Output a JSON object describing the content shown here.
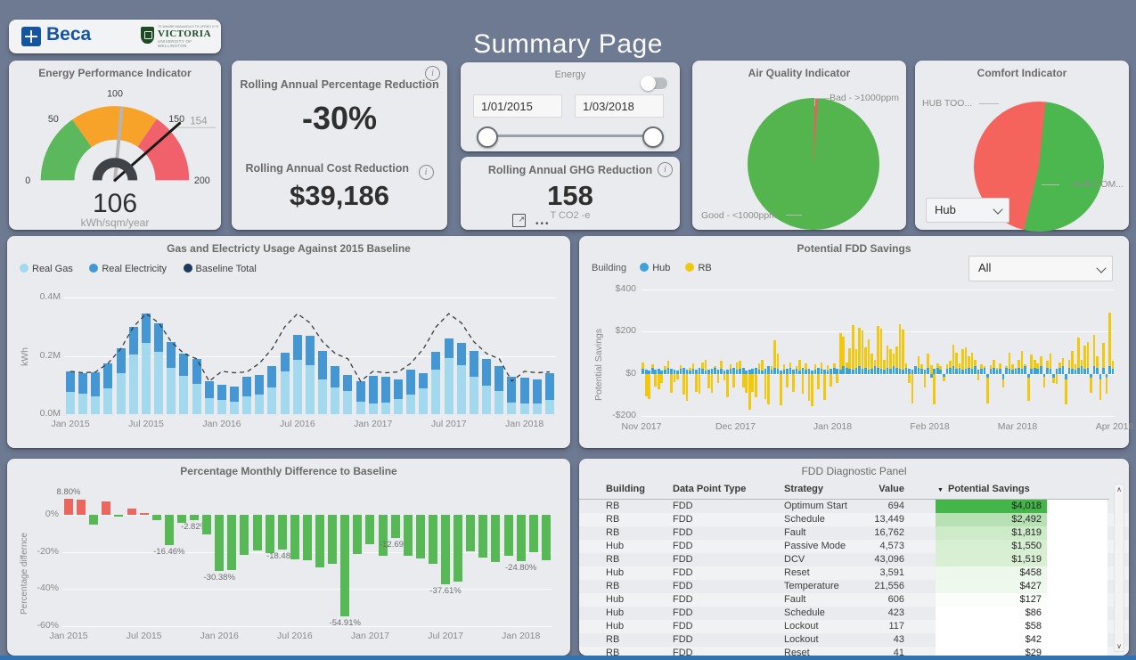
{
  "page": {
    "title": "Summary Page"
  },
  "colors": {
    "background": "#6e7a92",
    "card": "#e9ebee",
    "bottom_strip": "#2e73b4",
    "beca_blue": "#15549f",
    "victoria_green": "#1d4a24",
    "positive_red": "#ec6660",
    "negative_green": "#57b956"
  },
  "icons": {
    "info": "i",
    "ellipsis": "•••",
    "popout": "↗",
    "sort_caret": "▼",
    "scroll_up": "∧",
    "scroll_down": "∨"
  },
  "logos": {
    "beca_text": "Beca",
    "victoria_maori": "TE WHARE WANANGA O TE UPOKO O TE IKA A MAUI",
    "victoria_text": "VICTORIA",
    "victoria_sub": "UNIVERSITY OF WELLINGTON"
  },
  "rolling": {
    "pct_title": "Rolling Annual Percentage Reduction",
    "pct_value": "-30%",
    "cost_title": "Rolling Annual Cost Reduction",
    "cost_value": "$39,186"
  },
  "slicer": {
    "title": "Energy",
    "start_date": "1/01/2015",
    "end_date": "1/03/2018"
  },
  "ghg": {
    "title": "Rolling Annual GHG Reduction",
    "value": "158",
    "unit": "T CO2 -e"
  },
  "chart_data": [
    {
      "id": "epi_gauge",
      "type": "gauge",
      "title": "Energy Performance Indicator",
      "min": 0,
      "max": 200,
      "value": 106,
      "target": 154,
      "value_label": "106",
      "target_label": "154",
      "unit": "kWh/sqm/year",
      "ticks": [
        0,
        50,
        100,
        150,
        200
      ],
      "segments": [
        {
          "from": 0,
          "to": 61,
          "color": "#5cb85c"
        },
        {
          "from": 61,
          "to": 138,
          "color": "#f7a228"
        },
        {
          "from": 138,
          "to": 200,
          "color": "#f0616b"
        }
      ]
    },
    {
      "id": "air_quality",
      "type": "pie",
      "title": "Air Quality Indicator",
      "slices": [
        {
          "label": "Bad - >1000ppm",
          "pct": 0.8,
          "color": "#ec5f60"
        },
        {
          "label": "Good - <1000ppm",
          "pct": 99.2,
          "color": "#54b44e"
        }
      ]
    },
    {
      "id": "comfort",
      "type": "pie",
      "title": "Comfort Indicator",
      "filter_value": "Hub",
      "slices": [
        {
          "label": "HUB COM...",
          "pct": 52,
          "color": "#4cb64f"
        },
        {
          "label": "HUB TOO...",
          "pct": 48,
          "color": "#f4645c"
        }
      ]
    },
    {
      "id": "usage",
      "type": "bar",
      "title": "Gas and Electricty Usage Against 2015 Baseline",
      "ylabel": "kWh",
      "ylim": [
        0,
        0.44
      ],
      "yticks": [
        "0.0M",
        "0.2M",
        "0.4M"
      ],
      "ytick_values": [
        0,
        0.2,
        0.4
      ],
      "xticks": [
        "Jan 2015",
        "Jul 2015",
        "Jan 2016",
        "Jul 2016",
        "Jan 2017",
        "Jul 2017",
        "Jan 2018"
      ],
      "xtick_index": [
        0,
        6,
        12,
        18,
        24,
        30,
        36
      ],
      "categories": [
        "Jan 2015",
        "Feb 2015",
        "Mar 2015",
        "Apr 2015",
        "May 2015",
        "Jun 2015",
        "Jul 2015",
        "Aug 2015",
        "Sep 2015",
        "Oct 2015",
        "Nov 2015",
        "Dec 2015",
        "Jan 2016",
        "Feb 2016",
        "Mar 2016",
        "Apr 2016",
        "May 2016",
        "Jun 2016",
        "Jul 2016",
        "Aug 2016",
        "Sep 2016",
        "Oct 2016",
        "Nov 2016",
        "Dec 2016",
        "Jan 2017",
        "Feb 2017",
        "Mar 2017",
        "Apr 2017",
        "May 2017",
        "Jun 2017",
        "Jul 2017",
        "Aug 2017",
        "Sep 2017",
        "Oct 2017",
        "Nov 2017",
        "Dec 2017",
        "Jan 2018",
        "Feb 2018",
        "Mar 2018"
      ],
      "series": [
        {
          "name": "Real Gas",
          "color": "#a3d9ee",
          "values": [
            0.075,
            0.07,
            0.06,
            0.09,
            0.14,
            0.205,
            0.245,
            0.215,
            0.16,
            0.13,
            0.105,
            0.055,
            0.048,
            0.044,
            0.062,
            0.068,
            0.092,
            0.148,
            0.185,
            0.168,
            0.118,
            0.092,
            0.078,
            0.042,
            0.038,
            0.04,
            0.052,
            0.066,
            0.088,
            0.152,
            0.192,
            0.168,
            0.128,
            0.098,
            0.078,
            0.04,
            0.036,
            0.038,
            0.048
          ]
        },
        {
          "name": "Real Electricity",
          "color": "#4497d3",
          "values": [
            0.072,
            0.07,
            0.085,
            0.085,
            0.085,
            0.095,
            0.1,
            0.098,
            0.088,
            0.078,
            0.085,
            0.058,
            0.052,
            0.05,
            0.066,
            0.066,
            0.074,
            0.062,
            0.088,
            0.102,
            0.098,
            0.072,
            0.058,
            0.072,
            0.092,
            0.088,
            0.068,
            0.088,
            0.052,
            0.062,
            0.068,
            0.078,
            0.088,
            0.092,
            0.088,
            0.088,
            0.09,
            0.082,
            0.092
          ]
        },
        {
          "name": "Baseline Total",
          "color": "#1b3a5c",
          "style": "dashed-line",
          "values": [
            0.147,
            0.142,
            0.145,
            0.175,
            0.225,
            0.3,
            0.345,
            0.313,
            0.248,
            0.208,
            0.19,
            0.113,
            0.147,
            0.142,
            0.145,
            0.175,
            0.225,
            0.3,
            0.345,
            0.313,
            0.248,
            0.208,
            0.19,
            0.113,
            0.147,
            0.142,
            0.145,
            0.175,
            0.225,
            0.3,
            0.345,
            0.313,
            0.248,
            0.208,
            0.19,
            0.113,
            0.147,
            0.142,
            0.145
          ]
        }
      ]
    },
    {
      "id": "fdd_savings",
      "type": "bar",
      "title": "Potential FDD Savings",
      "legend_title": "Building",
      "filter_value": "All",
      "ylabel": "Potential Savings",
      "ylim": [
        -200,
        400
      ],
      "yticks": [
        "$400",
        "$200",
        "$0",
        "-$200"
      ],
      "ytick_values": [
        400,
        200,
        0,
        -200
      ],
      "xticks": [
        "Nov 2017",
        "Dec 2017",
        "Jan 2018",
        "Feb 2018",
        "Mar 2018",
        "Apr 2018"
      ],
      "xtick_index": [
        0,
        30,
        61,
        92,
        120,
        151
      ],
      "series": [
        {
          "name": "Hub",
          "color": "#3aa3dc",
          "values": [
            25,
            20,
            15,
            30,
            20,
            25,
            15,
            20,
            30,
            25,
            20,
            15,
            25,
            30,
            20,
            15,
            25,
            20,
            30,
            25,
            15,
            20,
            25,
            30,
            20,
            25,
            15,
            20,
            25,
            30,
            20,
            25,
            30,
            15,
            20,
            25,
            30,
            20,
            15,
            25,
            35,
            20,
            30,
            25,
            15,
            20,
            25,
            30,
            20,
            25,
            15,
            30,
            20,
            25,
            15,
            20,
            30,
            25,
            20,
            15,
            25,
            30,
            25,
            20,
            35,
            30,
            25,
            20,
            30,
            35,
            25,
            30,
            20,
            25,
            35,
            30,
            25,
            20,
            30,
            25,
            35,
            30,
            25,
            20,
            30,
            25,
            20,
            35,
            30,
            25,
            20,
            30,
            -20,
            25,
            30,
            20,
            -15,
            25,
            30,
            35,
            25,
            30,
            20,
            25,
            30,
            25,
            35,
            20,
            25,
            30,
            -20,
            25,
            30,
            20,
            25,
            -25,
            30,
            25,
            20,
            25,
            30,
            25,
            35,
            -20,
            25,
            30,
            25,
            35,
            -15,
            30,
            25,
            -20,
            25,
            30,
            35,
            -25,
            30,
            25,
            20,
            30,
            35,
            25,
            30,
            -20,
            35,
            30,
            -25,
            30,
            -20,
            35,
            25
          ]
        },
        {
          "name": "RB",
          "color": "#f2c80f",
          "values": [
            55,
            -105,
            -120,
            45,
            -60,
            -75,
            -45,
            35,
            60,
            -90,
            -40,
            -25,
            40,
            -100,
            -130,
            30,
            50,
            -85,
            -95,
            55,
            65,
            -70,
            -90,
            35,
            -45,
            60,
            -30,
            -110,
            45,
            -65,
            55,
            60,
            -65,
            -90,
            -170,
            -85,
            -110,
            50,
            65,
            -120,
            -145,
            35,
            160,
            95,
            -150,
            45,
            -65,
            55,
            -85,
            35,
            65,
            -95,
            50,
            -130,
            -155,
            45,
            -75,
            55,
            -125,
            40,
            -60,
            50,
            -45,
            195,
            175,
            55,
            120,
            230,
            115,
            220,
            205,
            125,
            165,
            95,
            65,
            225,
            215,
            65,
            135,
            115,
            95,
            130,
            235,
            210,
            50,
            -45,
            -140,
            35,
            85,
            45,
            -65,
            95,
            40,
            -145,
            50,
            35,
            -35,
            45,
            60,
            140,
            100,
            50,
            115,
            125,
            85,
            100,
            65,
            -30,
            45,
            35,
            -140,
            40,
            65,
            30,
            50,
            -65,
            35,
            100,
            45,
            30,
            65,
            110,
            45,
            -130,
            90,
            65,
            50,
            85,
            -65,
            60,
            95,
            -45,
            -50,
            55,
            75,
            -145,
            65,
            110,
            45,
            170,
            65,
            135,
            150,
            -90,
            185,
            85,
            -125,
            145,
            -95,
            290,
            60
          ]
        }
      ]
    },
    {
      "id": "monthly_diff",
      "type": "bar",
      "title": "Percentage Monthly Difference to Baseline",
      "ylabel": "Percentage differnce",
      "ylim": [
        -60,
        12
      ],
      "yticks": [
        "0%",
        "-20%",
        "-40%",
        "-60%"
      ],
      "ytick_values": [
        0,
        -20,
        -40,
        -60
      ],
      "xticks": [
        "Jan 2015",
        "Jul 2015",
        "Jan 2016",
        "Jul 2016",
        "Jan 2017",
        "Jul 2017",
        "Jan 2018"
      ],
      "xtick_index": [
        0,
        6,
        12,
        18,
        24,
        30,
        36
      ],
      "pos_color": "#ec6660",
      "neg_color": "#57b956",
      "values": [
        8.8,
        8.3,
        -5.2,
        7.1,
        -1.0,
        3.2,
        0.9,
        -3.1,
        -16.46,
        -4.3,
        -2.82,
        -10.6,
        -30.38,
        -29.9,
        -21.8,
        -19.2,
        -20.6,
        -18.48,
        -23.8,
        -24.6,
        -28.1,
        -26.5,
        -54.91,
        -21.2,
        -15.6,
        -22.1,
        -12.69,
        -21.9,
        -23.6,
        -26.4,
        -37.61,
        -36.2,
        -19.6,
        -23.2,
        -25.4,
        -22.1,
        -24.8,
        -20.3,
        -24.6
      ],
      "labels": {
        "0": "8.80%",
        "8": "-16.46%",
        "10": "-2.82%",
        "12": "-30.38%",
        "17": "-18.48%",
        "22": "-54.91%",
        "26": "-12.69%",
        "30": "-37.61%",
        "36": "-24.80%"
      }
    },
    {
      "id": "fdd_table",
      "type": "table",
      "title": "FDD Diagnostic Panel",
      "columns": [
        "Building",
        "Data Point Type",
        "Strategy",
        "Value",
        "Potential Savings"
      ],
      "sort_column": "Potential Savings",
      "rows": [
        {
          "building": "RB",
          "type": "FDD",
          "strategy": "Optimum Start",
          "value": "694",
          "savings": "$4,018",
          "savings_bg": "#43b549"
        },
        {
          "building": "RB",
          "type": "FDD",
          "strategy": "Schedule",
          "value": "13,449",
          "savings": "$2,492",
          "savings_bg": "#b7e0b4"
        },
        {
          "building": "RB",
          "type": "FDD",
          "strategy": "Fault",
          "value": "16,762",
          "savings": "$1,819",
          "savings_bg": "#cdeac9"
        },
        {
          "building": "Hub",
          "type": "FDD",
          "strategy": "Passive Mode",
          "value": "4,573",
          "savings": "$1,550",
          "savings_bg": "#d6eed2"
        },
        {
          "building": "RB",
          "type": "FDD",
          "strategy": "DCV",
          "value": "43,096",
          "savings": "$1,519",
          "savings_bg": "#d8efd4"
        },
        {
          "building": "Hub",
          "type": "FDD",
          "strategy": "Reset",
          "value": "3,591",
          "savings": "$458",
          "savings_bg": "#eef7ec"
        },
        {
          "building": "RB",
          "type": "FDD",
          "strategy": "Temperature",
          "value": "21,556",
          "savings": "$427",
          "savings_bg": "#eff8ed"
        },
        {
          "building": "Hub",
          "type": "FDD",
          "strategy": "Fault",
          "value": "606",
          "savings": "$127",
          "savings_bg": "#fafdf9"
        },
        {
          "building": "Hub",
          "type": "FDD",
          "strategy": "Schedule",
          "value": "423",
          "savings": "$86",
          "savings_bg": "#ffffff"
        },
        {
          "building": "Hub",
          "type": "FDD",
          "strategy": "Lockout",
          "value": "117",
          "savings": "$58",
          "savings_bg": "#ffffff"
        },
        {
          "building": "RB",
          "type": "FDD",
          "strategy": "Lockout",
          "value": "43",
          "savings": "$42",
          "savings_bg": "#ffffff"
        },
        {
          "building": "RB",
          "type": "FDD",
          "strategy": "Reset",
          "value": "41",
          "savings": "$29",
          "savings_bg": "#ffffff"
        }
      ]
    }
  ]
}
